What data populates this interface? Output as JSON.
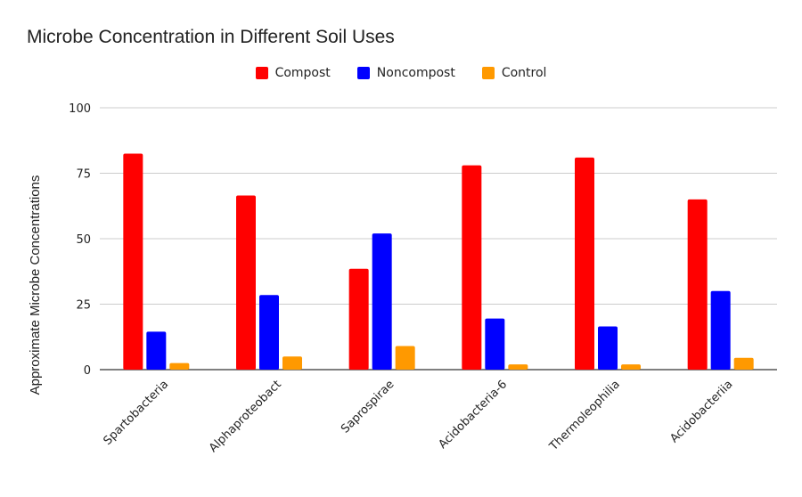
{
  "chart_data": {
    "type": "bar",
    "title": "Microbe Concentration in Different Soil Uses",
    "xlabel": "",
    "ylabel": "Approximate Microbe Concentrations",
    "ylim": [
      0,
      100
    ],
    "yticks": [
      0,
      25,
      50,
      75,
      100
    ],
    "grid": true,
    "legend_position": "top",
    "categories": [
      "Spartobacteria",
      "Alphaproteobact",
      "Saprospirae",
      "Acidobacteria-6",
      "Thermoleophilia",
      "Acidobacteriia"
    ],
    "series": [
      {
        "name": "Compost",
        "color": "#ff0000",
        "values": [
          82.5,
          66.5,
          38.5,
          78,
          81,
          65
        ]
      },
      {
        "name": "Noncompost",
        "color": "#0000ff",
        "values": [
          14.5,
          28.5,
          52,
          19.5,
          16.5,
          30
        ]
      },
      {
        "name": "Control",
        "color": "#ff9900",
        "values": [
          2.5,
          5,
          9,
          2,
          2,
          4.5
        ]
      }
    ]
  }
}
